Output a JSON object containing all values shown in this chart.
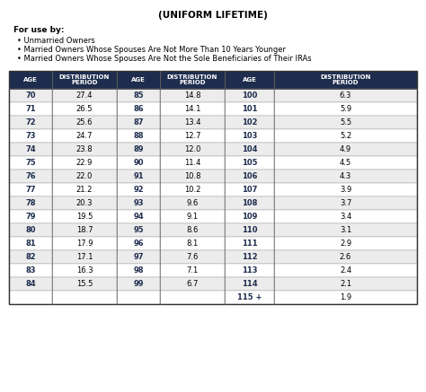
{
  "title": "(UNIFORM LIFETIME)",
  "for_use_by": "For use by:",
  "bullets": [
    "Unmarried Owners",
    "Married Owners Whose Spouses Are Not More Than 10 Years Younger",
    "Married Owners Whose Spouses Are Not the Sole Beneficiaries of Their IRAs"
  ],
  "header_bg": "#1e2d4e",
  "header_text": "#ffffff",
  "col1_ages": [
    70,
    71,
    72,
    73,
    74,
    75,
    76,
    77,
    78,
    79,
    80,
    81,
    82,
    83,
    84
  ],
  "col1_dist": [
    "27.4",
    "26.5",
    "25.6",
    "24.7",
    "23.8",
    "22.9",
    "22.0",
    "21.2",
    "20.3",
    "19.5",
    "18.7",
    "17.9",
    "17.1",
    "16.3",
    "15.5"
  ],
  "col2_ages": [
    85,
    86,
    87,
    88,
    89,
    90,
    91,
    92,
    93,
    94,
    95,
    96,
    97,
    98,
    99
  ],
  "col2_dist": [
    "14.8",
    "14.1",
    "13.4",
    "12.7",
    "12.0",
    "11.4",
    "10.8",
    "10.2",
    "9.6",
    "9.1",
    "8.6",
    "8.1",
    "7.6",
    "7.1",
    "6.7"
  ],
  "col3_ages": [
    "100",
    "101",
    "102",
    "103",
    "104",
    "105",
    "106",
    "107",
    "108",
    "109",
    "110",
    "111",
    "112",
    "113",
    "114",
    "115 +"
  ],
  "col3_dist": [
    "6.3",
    "5.9",
    "5.5",
    "5.2",
    "4.9",
    "4.5",
    "4.3",
    "3.9",
    "3.7",
    "3.4",
    "3.1",
    "2.9",
    "2.6",
    "2.4",
    "2.1",
    "1.9"
  ]
}
